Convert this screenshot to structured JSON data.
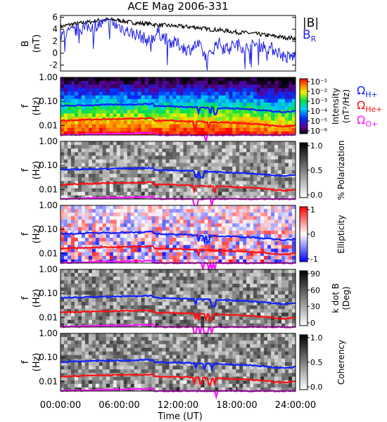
{
  "title": "ACE Mag 2006-331",
  "colors": {
    "B_total": "#000000",
    "B_R": "#1f1fe6",
    "omega_H": "#1020ff",
    "omega_He": "#ff1010",
    "omega_O": "#ff10ff"
  },
  "legend": {
    "B_total": "|B|",
    "B_R": "B",
    "B_R_sub": "R",
    "omega_sym": "Ω",
    "omega_H_sub": "H+",
    "omega_He_sub": "He+",
    "omega_O_sub": "O+"
  },
  "x_axis": {
    "label": "Time (UT)",
    "ticks": [
      "00:00:00",
      "06:00:00",
      "12:00:00",
      "18:00:00",
      "24:00:00"
    ],
    "range_hours": [
      0,
      24
    ]
  },
  "f_axis": {
    "label_f": "f",
    "label_unit": "(Hz)",
    "ticks": [
      "1.00",
      "0.10",
      "0.01"
    ],
    "range_hz": [
      0.004,
      1.0
    ],
    "scale": "log"
  },
  "chart_data": [
    {
      "type": "line",
      "panel": "magnetic-field",
      "ylabel_top": "B",
      "ylabel_unit": "(nT)",
      "ylim": [
        -3,
        6.3
      ],
      "yticks": [
        "6",
        "4",
        "2",
        "0",
        "-2"
      ],
      "ytick_values": [
        6,
        4,
        2,
        0,
        -2
      ],
      "series": [
        {
          "name": "|B|",
          "x_hours": [
            0,
            1,
            2,
            3,
            4,
            5,
            6,
            7,
            8,
            9,
            10,
            11,
            12,
            13,
            14,
            15,
            16,
            17,
            18,
            19,
            20,
            21,
            22,
            23,
            24
          ],
          "values": [
            4.4,
            4.8,
            5.0,
            5.2,
            5.5,
            5.6,
            5.5,
            5.2,
            5.0,
            4.9,
            4.7,
            4.6,
            4.5,
            4.4,
            4.3,
            4.0,
            3.9,
            3.7,
            3.5,
            3.4,
            3.2,
            3.0,
            2.8,
            2.6,
            2.5
          ]
        },
        {
          "name": "B_R",
          "x_hours": [
            0,
            1,
            2,
            3,
            4,
            5,
            6,
            7,
            8,
            9,
            10,
            11,
            12,
            13,
            14,
            15,
            16,
            17,
            18,
            19,
            20,
            21,
            22,
            23,
            24
          ],
          "values": [
            3.0,
            3.5,
            4.0,
            4.5,
            4.8,
            5.0,
            4.5,
            3.5,
            3.0,
            2.0,
            3.5,
            2.0,
            1.5,
            0.5,
            1.5,
            -1.0,
            1.8,
            0.8,
            1.5,
            0.8,
            1.5,
            1.0,
            0.5,
            -0.8,
            -0.5
          ]
        }
      ]
    },
    {
      "type": "heatmap",
      "panel": "intensity",
      "colorbar_label": "Intensity",
      "colorbar_unit": "(nT²/Hz)",
      "colorbar_ticks": [
        "10⁻¹",
        "10⁻²",
        "10⁻³",
        "10⁻⁴",
        "10⁻⁵",
        "10⁻⁶"
      ],
      "colormap": "rainbow"
    },
    {
      "type": "heatmap",
      "panel": "polarization",
      "colorbar_label": "% Polarization",
      "colorbar_ticks": [
        "1.0",
        "0.5",
        "0.0"
      ],
      "colormap": "grayscale"
    },
    {
      "type": "heatmap",
      "panel": "ellipticity",
      "colorbar_label": "Ellipticity",
      "colorbar_ticks": [
        "1",
        "0",
        "-1"
      ],
      "colormap": "blue-white-red"
    },
    {
      "type": "heatmap",
      "panel": "k-dot-b",
      "colorbar_label": "k dot B",
      "colorbar_unit": "(Deg)",
      "colorbar_ticks": [
        "90",
        "60",
        "30",
        "0"
      ],
      "colormap": "grayscale"
    },
    {
      "type": "heatmap",
      "panel": "coherency",
      "colorbar_label": "Coherency",
      "colorbar_ticks": [
        "1.0",
        "0.5",
        "0.0"
      ],
      "colormap": "grayscale"
    }
  ],
  "gyrofrequency_lines": [
    {
      "name": "Ω H+",
      "color": "#1020ff",
      "x_hours": [
        0,
        2,
        4,
        6,
        8,
        9.5,
        9.6,
        11,
        13,
        15,
        17,
        19,
        21,
        22,
        23,
        24
      ],
      "values_hz": [
        0.065,
        0.068,
        0.072,
        0.074,
        0.077,
        0.08,
        0.065,
        0.063,
        0.06,
        0.055,
        0.052,
        0.048,
        0.042,
        0.038,
        0.036,
        0.04
      ]
    },
    {
      "name": "Ω He+",
      "color": "#ff1010",
      "x_hours": [
        0,
        2,
        4,
        6,
        8,
        9.5,
        9.6,
        11,
        13,
        15,
        17,
        19,
        21,
        22,
        23,
        24
      ],
      "values_hz": [
        0.016,
        0.017,
        0.018,
        0.0185,
        0.019,
        0.02,
        0.016,
        0.0158,
        0.015,
        0.0138,
        0.013,
        0.012,
        0.0105,
        0.0095,
        0.009,
        0.01
      ]
    },
    {
      "name": "Ω O+",
      "color": "#ff10ff",
      "x_hours": [
        0,
        2,
        4,
        6,
        8,
        9.5,
        9.6,
        11,
        13,
        15,
        17,
        19,
        21,
        22,
        23,
        24
      ],
      "values_hz": [
        0.0041,
        0.0042,
        0.0045,
        0.0046,
        0.0048,
        0.005,
        0.0041,
        0.004,
        0.004,
        0.004,
        0.004,
        0.004,
        0.004,
        0.004,
        0.004,
        0.004
      ]
    }
  ]
}
